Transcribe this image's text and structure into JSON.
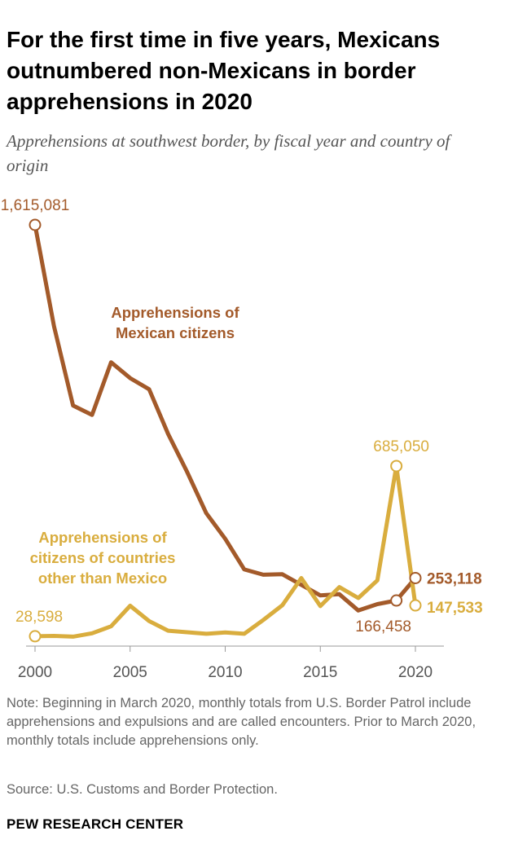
{
  "title": "For the first time in five years, Mexicans outnumbered non-Mexicans in border apprehensions in 2020",
  "subtitle": "Apprehensions at southwest border, by fiscal year and country of origin",
  "note": "Note: Beginning in March 2020, monthly totals from U.S. Border Patrol include apprehensions and expulsions and are called encounters. Prior to March 2020, monthly totals include apprehensions only.",
  "source": "Source: U.S. Customs and Border Protection.",
  "brand": "PEW RESEARCH CENTER",
  "colors": {
    "mexican": "#a35a2a",
    "other": "#d9ad3e",
    "axis": "#999999",
    "tick_text": "#555555"
  },
  "chart_data": {
    "type": "line",
    "title": "For the first time in five years, Mexicans outnumbered non-Mexicans in border apprehensions in 2020",
    "xlabel": "",
    "ylabel": "",
    "x": [
      2000,
      2001,
      2002,
      2003,
      2004,
      2005,
      2006,
      2007,
      2008,
      2009,
      2010,
      2011,
      2012,
      2013,
      2014,
      2015,
      2016,
      2017,
      2018,
      2019,
      2020
    ],
    "xticks": [
      "2000",
      "2005",
      "2010",
      "2015",
      "2020"
    ],
    "ylim": [
      0,
      1650000
    ],
    "grid": false,
    "series": [
      {
        "name": "Apprehensions of Mexican citizens",
        "label_lines": [
          "Apprehensions of",
          "Mexican citizens"
        ],
        "color_key": "mexican",
        "values": [
          1615081,
          1224047,
          917993,
          882012,
          1085006,
          1023905,
          981066,
          808688,
          661766,
          503386,
          404365,
          286154,
          265755,
          267734,
          226771,
          186017,
          190760,
          127938,
          152257,
          166458,
          253118
        ]
      },
      {
        "name": "Apprehensions of citizens of countries other than Mexico",
        "label_lines": [
          "Apprehensions of",
          "citizens of countries",
          "other than Mexico"
        ],
        "color_key": "other",
        "values": [
          28598,
          30000,
          27000,
          40000,
          67000,
          146000,
          87000,
          50000,
          44000,
          38000,
          43000,
          38000,
          91000,
          148000,
          253000,
          145000,
          218000,
          176000,
          244000,
          685050,
          147533
        ]
      }
    ],
    "annotations": [
      {
        "series": 0,
        "index": 0,
        "text": "1,615,081",
        "circle": true
      },
      {
        "series": 0,
        "index": 19,
        "text": "166,458",
        "circle": true
      },
      {
        "series": 0,
        "index": 20,
        "text": "253,118",
        "circle": true
      },
      {
        "series": 1,
        "index": 0,
        "text": "28,598",
        "circle": true
      },
      {
        "series": 1,
        "index": 19,
        "text": "685,050",
        "circle": true
      },
      {
        "series": 1,
        "index": 20,
        "text": "147,533",
        "circle": true
      }
    ]
  }
}
